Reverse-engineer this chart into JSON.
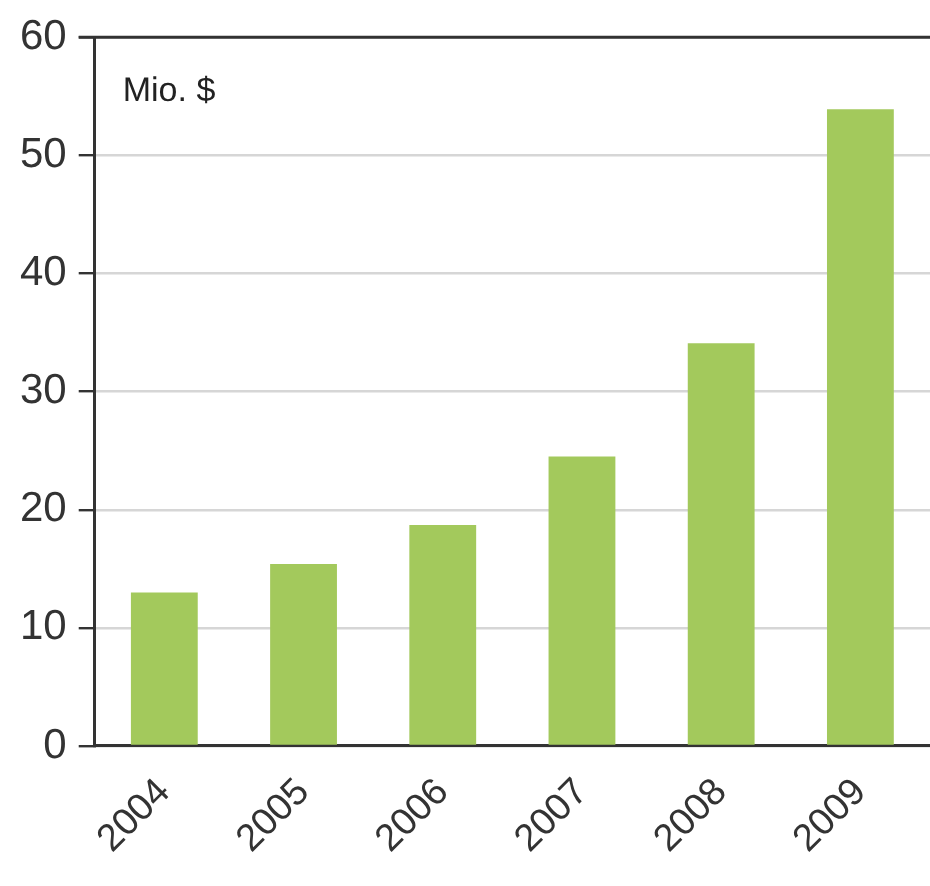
{
  "chart_data": {
    "type": "bar",
    "ylabel": "Mio. $",
    "categories": [
      "2004",
      "2005",
      "2006",
      "2007",
      "2008",
      "2009"
    ],
    "values": [
      13,
      15.4,
      18.7,
      24.5,
      34.1,
      53.9
    ],
    "color": "#a3c95c",
    "ylim": [
      0,
      60
    ],
    "yticks": [
      0,
      10,
      20,
      30,
      40,
      50,
      60
    ],
    "grid": "y",
    "legend": false
  }
}
